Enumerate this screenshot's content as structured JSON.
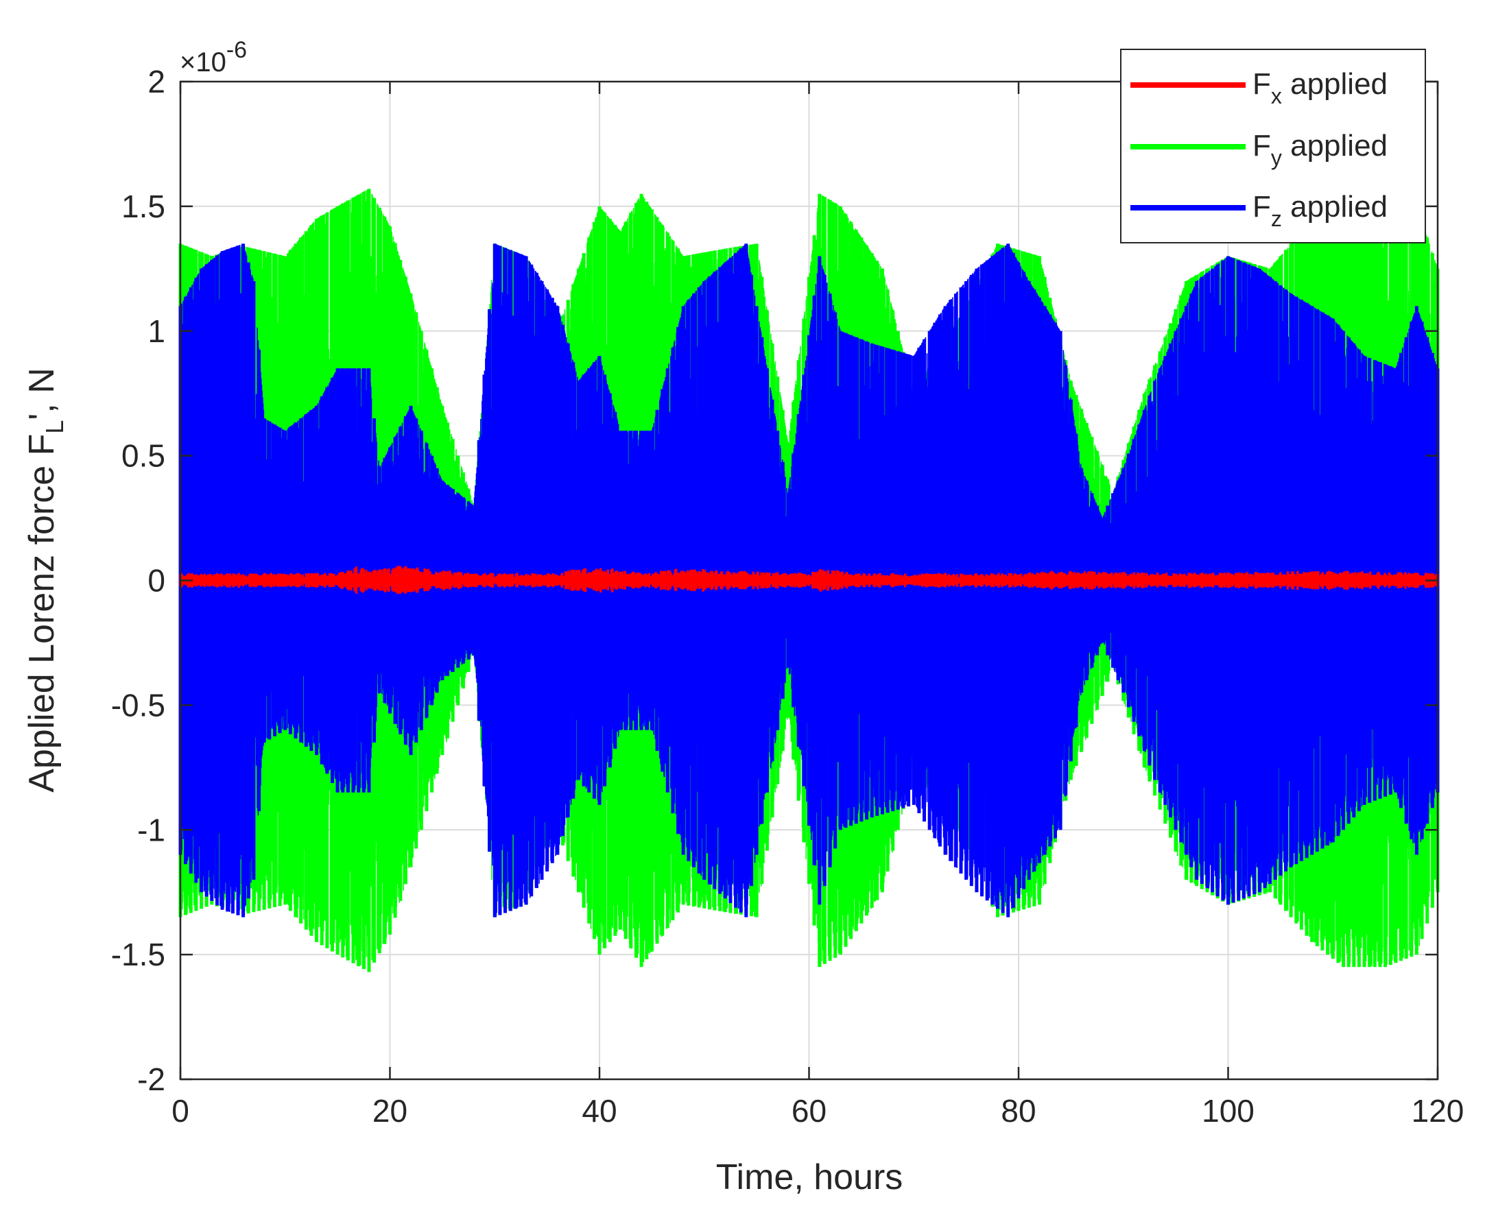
{
  "chart_data": {
    "type": "line",
    "title": "",
    "xlabel": "Time, hours",
    "ylabel": {
      "main": "Applied Lorenz force F",
      "subscript": "L",
      "suffix": "', N"
    },
    "xlim": [
      0,
      120
    ],
    "ylim": [
      -2,
      2
    ],
    "y_scale_exponent": {
      "base": "×10",
      "power": "-6"
    },
    "xticks": [
      0,
      20,
      40,
      60,
      80,
      100,
      120
    ],
    "yticks": [
      2,
      1.5,
      1,
      0.5,
      0,
      -0.5,
      -1,
      -1.5,
      -2
    ],
    "ytick_labels": [
      "2",
      "1.5",
      "1",
      "0.5",
      "0",
      "-0.5",
      "-1",
      "-1.5",
      "-2"
    ],
    "grid": true,
    "legend_position": "top-right",
    "series": [
      {
        "name": "Fx applied",
        "legend_main": "F",
        "legend_sub": "x",
        "legend_rest": " applied",
        "color": "#ff0000",
        "amplitude_envelope": {
          "t": [
            0,
            15,
            17,
            18,
            21,
            28,
            36,
            38,
            41,
            44,
            48,
            52,
            60,
            61,
            65,
            80,
            84,
            95,
            110,
            120
          ],
          "amp": [
            0.03,
            0.03,
            0.06,
            0.04,
            0.06,
            0.03,
            0.03,
            0.05,
            0.05,
            0.03,
            0.05,
            0.04,
            0.03,
            0.05,
            0.03,
            0.03,
            0.04,
            0.03,
            0.04,
            0.03
          ]
        }
      },
      {
        "name": "Fy applied",
        "legend_main": "F",
        "legend_sub": "y",
        "legend_rest": " applied",
        "color": "#00ff00",
        "amplitude_envelope": {
          "t": [
            0,
            3,
            6,
            7,
            10,
            13,
            15,
            18,
            20,
            22,
            25,
            28,
            30,
            33,
            36,
            40,
            42,
            44,
            48,
            52,
            55,
            58,
            61,
            63,
            67,
            70,
            75,
            78,
            82,
            85,
            89,
            92,
            96,
            100,
            104,
            108,
            111,
            115,
            118,
            120
          ],
          "amp": [
            1.35,
            1.3,
            1.34,
            1.33,
            1.3,
            1.45,
            1.5,
            1.57,
            1.42,
            1.15,
            0.7,
            0.3,
            1.35,
            1.3,
            1.0,
            1.5,
            1.4,
            1.55,
            1.3,
            1.33,
            1.35,
            0.55,
            1.55,
            1.5,
            1.25,
            0.75,
            1.1,
            1.35,
            1.3,
            0.8,
            0.35,
            0.75,
            1.2,
            1.3,
            1.25,
            1.45,
            1.55,
            1.55,
            1.5,
            1.25
          ]
        }
      },
      {
        "name": "Fz applied",
        "legend_main": "F",
        "legend_sub": "z",
        "legend_rest": " applied",
        "color": "#0000ff",
        "amplitude_envelope": {
          "t": [
            0,
            2,
            4,
            6,
            7,
            8,
            10,
            13,
            15,
            18,
            19,
            22,
            25,
            28,
            30,
            33,
            36,
            38,
            40,
            42,
            45,
            48,
            50,
            54,
            58,
            61,
            63,
            66,
            70,
            73,
            76,
            79,
            81,
            84,
            86,
            88,
            90,
            93,
            97,
            100,
            103,
            106,
            110,
            113,
            116,
            118,
            120
          ],
          "amp": [
            1.1,
            1.25,
            1.32,
            1.35,
            1.2,
            0.65,
            0.6,
            0.7,
            0.85,
            0.85,
            0.45,
            0.7,
            0.4,
            0.3,
            1.35,
            1.3,
            1.1,
            0.8,
            0.9,
            0.6,
            0.6,
            1.1,
            1.2,
            1.35,
            0.35,
            1.3,
            1.0,
            0.95,
            0.9,
            1.1,
            1.25,
            1.35,
            1.2,
            1.0,
            0.45,
            0.25,
            0.45,
            0.8,
            1.2,
            1.3,
            1.25,
            1.15,
            1.05,
            0.9,
            0.85,
            1.1,
            0.85
          ]
        }
      }
    ]
  }
}
